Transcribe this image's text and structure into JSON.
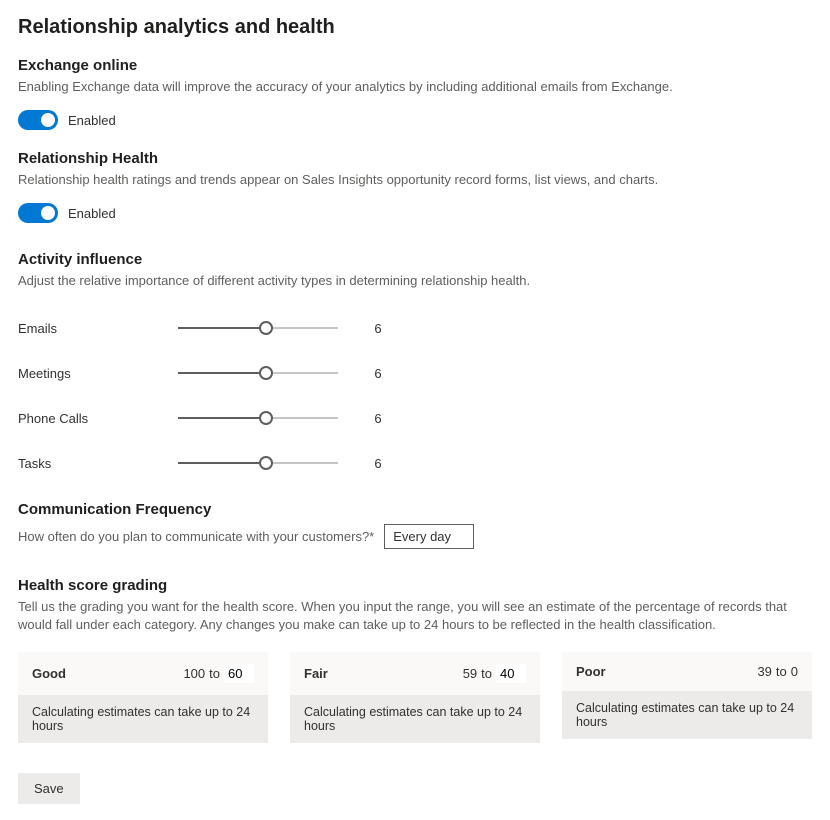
{
  "page_title": "Relationship analytics and health",
  "exchange": {
    "title": "Exchange online",
    "desc": "Enabling Exchange data will improve the accuracy of your analytics by including additional emails from Exchange.",
    "enabled_label": "Enabled",
    "toggle_color": "#0078d4"
  },
  "rel_health": {
    "title": "Relationship Health",
    "desc": "Relationship health ratings and trends appear on Sales Insights opportunity record forms, list views, and charts.",
    "enabled_label": "Enabled",
    "toggle_color": "#0078d4"
  },
  "activity": {
    "title": "Activity influence",
    "desc": "Adjust the relative importance of different activity types in determining relationship health.",
    "sliders": {
      "emails": {
        "label": "Emails",
        "value": "6",
        "fill_pct": 55
      },
      "meetings": {
        "label": "Meetings",
        "value": "6",
        "fill_pct": 55
      },
      "phonecalls": {
        "label": "Phone Calls",
        "value": "6",
        "fill_pct": 55
      },
      "tasks": {
        "label": "Tasks",
        "value": "6",
        "fill_pct": 55
      }
    }
  },
  "comm": {
    "title": "Communication Frequency",
    "label": "How often do you plan to communicate with your customers?*",
    "value": "Every day"
  },
  "grading": {
    "title": "Health score grading",
    "desc": "Tell us the grading you want for the health score. When you input the range, you will see an estimate of the percentage of records that would fall under each category. Any changes you make can take up to 24 hours to be reflected in the health classification.",
    "note": "Calculating estimates can take up to 24 hours",
    "to_label": "to",
    "cards": {
      "good": {
        "name": "Good",
        "from": "100",
        "to": "60",
        "to_editable": true
      },
      "fair": {
        "name": "Fair",
        "from": "59",
        "to": "40",
        "to_editable": true
      },
      "poor": {
        "name": "Poor",
        "from": "39",
        "to": "0",
        "to_editable": false
      }
    }
  },
  "save_label": "Save",
  "colors": {
    "header_bg": "#faf9f8",
    "note_bg": "#edebe9",
    "text_muted": "#605e5c"
  }
}
